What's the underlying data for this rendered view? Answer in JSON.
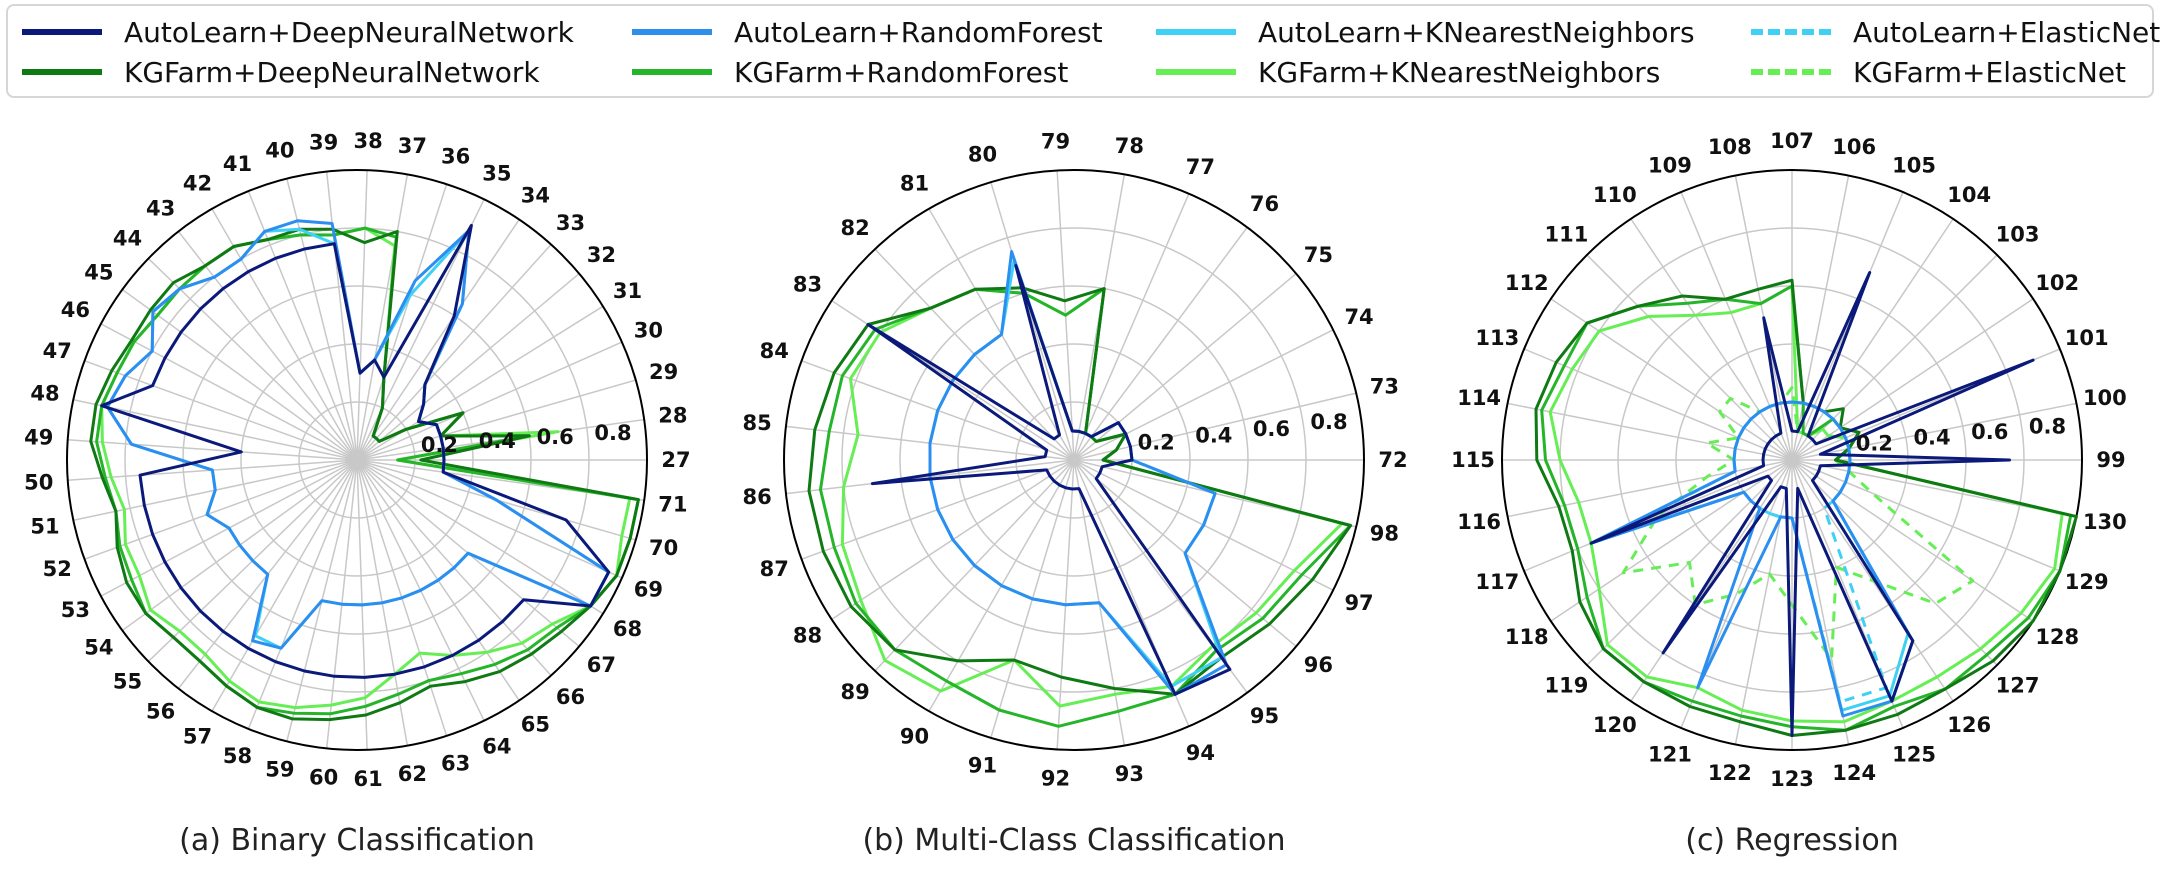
{
  "legend": [
    {
      "name": "AutoLearn+DeepNeuralNetwork",
      "color": "#0b1a7a",
      "dash": false
    },
    {
      "name": "AutoLearn+RandomForest",
      "color": "#2c8ff0",
      "dash": false
    },
    {
      "name": "AutoLearn+KNearestNeighbors",
      "color": "#3fd0f5",
      "dash": false
    },
    {
      "name": "AutoLearn+ElasticNet",
      "color": "#3fd0f5",
      "dash": true
    },
    {
      "name": "KGFarm+DeepNeuralNetwork",
      "color": "#0f7a14",
      "dash": false
    },
    {
      "name": "KGFarm+RandomForest",
      "color": "#26b52a",
      "dash": false
    },
    {
      "name": "KGFarm+KNearestNeighbors",
      "color": "#66ee55",
      "dash": false
    },
    {
      "name": "KGFarm+ElasticNet",
      "color": "#66ee55",
      "dash": true
    }
  ],
  "chart_data": [
    {
      "type": "radar",
      "caption": "(a) Binary Classification",
      "categories": [
        "27",
        "28",
        "29",
        "30",
        "31",
        "32",
        "33",
        "34",
        "35",
        "36",
        "37",
        "38",
        "39",
        "40",
        "41",
        "42",
        "43",
        "44",
        "45",
        "46",
        "47",
        "48",
        "49",
        "50",
        "51",
        "52",
        "53",
        "54",
        "55",
        "56",
        "57",
        "58",
        "59",
        "60",
        "61",
        "62",
        "63",
        "64",
        "65",
        "66",
        "67",
        "68",
        "69",
        "70",
        "71"
      ],
      "rlim": [
        0,
        1
      ],
      "rticks": [
        0.2,
        0.4,
        0.6,
        0.8
      ],
      "grid": true,
      "series": [
        {
          "name": "KGFarm+KNearestNeighbors",
          "values": [
            0.14,
            0.7,
            0.3,
            0.4,
            0.2,
            0.1,
            0.1,
            0.1,
            0.2,
            0.3,
            0.75,
            0.8,
            0.78,
            0.8,
            0.82,
            0.85,
            0.85,
            0.85,
            0.85,
            0.87,
            0.88,
            0.9,
            0.88,
            0.85,
            0.82,
            0.85,
            0.85,
            0.88,
            0.85,
            0.85,
            0.88,
            0.9,
            0.88,
            0.85,
            0.82,
            0.75,
            0.7,
            0.75,
            0.8,
            0.85,
            0.88,
            0.95,
            0.98,
            0.95,
            0.95
          ]
        },
        {
          "name": "KGFarm+RandomForest",
          "values": [
            0.14,
            0.6,
            0.3,
            0.4,
            0.2,
            0.1,
            0.1,
            0.1,
            0.2,
            0.3,
            0.78,
            0.8,
            0.78,
            0.8,
            0.82,
            0.85,
            0.85,
            0.85,
            0.85,
            0.87,
            0.88,
            0.9,
            0.9,
            0.87,
            0.85,
            0.87,
            0.88,
            0.9,
            0.88,
            0.88,
            0.9,
            0.92,
            0.9,
            0.88,
            0.85,
            0.82,
            0.8,
            0.82,
            0.85,
            0.88,
            0.9,
            0.95,
            0.98,
            0.98,
            0.98
          ]
        },
        {
          "name": "KGFarm+DeepNeuralNetwork",
          "values": [
            0.22,
            0.6,
            0.3,
            0.4,
            0.2,
            0.1,
            0.1,
            0.1,
            0.2,
            0.3,
            0.8,
            0.75,
            0.8,
            0.82,
            0.82,
            0.85,
            0.85,
            0.88,
            0.88,
            0.88,
            0.9,
            0.92,
            0.92,
            0.88,
            0.85,
            0.88,
            0.9,
            0.9,
            0.88,
            0.88,
            0.9,
            0.92,
            0.92,
            0.9,
            0.88,
            0.85,
            0.82,
            0.85,
            0.88,
            0.9,
            0.92,
            0.95,
            0.98,
            0.98,
            0.98
          ]
        },
        {
          "name": "AutoLearn+KNearestNeighbors",
          "values": [
            0.3,
            0.3,
            0.3,
            0.3,
            0.25,
            0.3,
            0.35,
            0.65,
            0.88,
            0.6,
            0.35,
            0.3,
            0.75,
            0.82,
            0.85,
            0.8,
            0.8,
            0.85,
            0.87,
            0.8,
            0.85,
            0.88,
            0.78,
            0.5,
            0.5,
            0.55,
            0.5,
            0.5,
            0.5,
            0.5,
            0.7,
            0.7,
            0.5,
            0.5,
            0.5,
            0.5,
            0.5,
            0.5,
            0.5,
            0.5,
            0.5,
            0.95,
            0.95,
            0.5,
            0.3
          ]
        },
        {
          "name": "AutoLearn+RandomForest",
          "values": [
            0.3,
            0.3,
            0.3,
            0.3,
            0.25,
            0.3,
            0.35,
            0.65,
            0.88,
            0.65,
            0.35,
            0.3,
            0.82,
            0.85,
            0.85,
            0.8,
            0.8,
            0.85,
            0.87,
            0.8,
            0.85,
            0.88,
            0.78,
            0.5,
            0.5,
            0.55,
            0.5,
            0.5,
            0.5,
            0.5,
            0.72,
            0.7,
            0.5,
            0.5,
            0.5,
            0.5,
            0.5,
            0.5,
            0.5,
            0.5,
            0.5,
            0.95,
            0.95,
            0.5,
            0.3
          ]
        },
        {
          "name": "AutoLearn+DeepNeuralNetwork",
          "values": [
            0.3,
            0.3,
            0.3,
            0.3,
            0.25,
            0.3,
            0.35,
            0.6,
            0.9,
            0.3,
            0.35,
            0.3,
            0.75,
            0.75,
            0.75,
            0.75,
            0.75,
            0.75,
            0.75,
            0.75,
            0.75,
            0.9,
            0.4,
            0.75,
            0.75,
            0.75,
            0.75,
            0.75,
            0.75,
            0.75,
            0.75,
            0.75,
            0.75,
            0.75,
            0.75,
            0.75,
            0.75,
            0.75,
            0.75,
            0.75,
            0.75,
            0.95,
            0.95,
            0.75,
            0.3
          ]
        }
      ]
    },
    {
      "type": "radar",
      "caption": "(b) Multi-Class Classification",
      "categories": [
        "72",
        "73",
        "74",
        "75",
        "76",
        "77",
        "78",
        "79",
        "80",
        "81",
        "82",
        "83",
        "84",
        "85",
        "86",
        "87",
        "88",
        "89",
        "90",
        "91",
        "92",
        "93",
        "94",
        "95",
        "96",
        "97",
        "98"
      ],
      "rlim": [
        0,
        1
      ],
      "rticks": [
        0.2,
        0.4,
        0.6,
        0.8
      ],
      "grid": true,
      "series": [
        {
          "name": "KGFarm+KNearestNeighbors",
          "values": [
            0.1,
            0.15,
            0.2,
            0.1,
            0.1,
            0.1,
            0.6,
            0.5,
            0.6,
            0.68,
            0.72,
            0.8,
            0.82,
            0.75,
            0.8,
            0.85,
            0.88,
            0.95,
            0.92,
            0.72,
            0.85,
            0.82,
            0.85,
            0.8,
            0.82,
            0.85,
            0.95
          ]
        },
        {
          "name": "KGFarm+RandomForest",
          "values": [
            0.1,
            0.15,
            0.2,
            0.1,
            0.1,
            0.1,
            0.6,
            0.5,
            0.6,
            0.68,
            0.72,
            0.82,
            0.85,
            0.85,
            0.88,
            0.88,
            0.9,
            0.9,
            0.88,
            0.9,
            0.92,
            0.88,
            0.88,
            0.82,
            0.85,
            0.88,
            0.98
          ]
        },
        {
          "name": "KGFarm+DeepNeuralNetwork",
          "values": [
            0.1,
            0.15,
            0.2,
            0.1,
            0.1,
            0.1,
            0.6,
            0.55,
            0.62,
            0.68,
            0.72,
            0.85,
            0.88,
            0.9,
            0.92,
            0.92,
            0.92,
            0.9,
            0.8,
            0.72,
            0.75,
            0.8,
            0.88,
            0.85,
            0.88,
            0.92,
            0.98
          ]
        },
        {
          "name": "AutoLearn+KNearestNeighbors",
          "values": [
            0.2,
            0.2,
            0.2,
            0.2,
            0.1,
            0.1,
            0.1,
            0.1,
            0.72,
            0.5,
            0.5,
            0.5,
            0.5,
            0.5,
            0.5,
            0.5,
            0.5,
            0.5,
            0.5,
            0.5,
            0.5,
            0.5,
            0.85,
            0.85,
            0.5,
            0.5,
            0.5
          ]
        },
        {
          "name": "AutoLearn+RandomForest",
          "values": [
            0.2,
            0.2,
            0.2,
            0.2,
            0.1,
            0.1,
            0.1,
            0.1,
            0.75,
            0.5,
            0.5,
            0.5,
            0.5,
            0.5,
            0.5,
            0.5,
            0.5,
            0.5,
            0.5,
            0.5,
            0.5,
            0.5,
            0.88,
            0.88,
            0.5,
            0.5,
            0.5
          ]
        },
        {
          "name": "AutoLearn+DeepNeuralNetwork",
          "values": [
            0.2,
            0.2,
            0.2,
            0.2,
            0.1,
            0.1,
            0.1,
            0.1,
            0.7,
            0.1,
            0.1,
            0.85,
            0.1,
            0.1,
            0.7,
            0.1,
            0.1,
            0.1,
            0.1,
            0.1,
            0.1,
            0.1,
            0.88,
            0.9,
            0.1,
            0.1,
            0.1
          ]
        }
      ]
    },
    {
      "type": "radar",
      "caption": "(c) Regression",
      "categories": [
        "99",
        "100",
        "101",
        "102",
        "103",
        "104",
        "105",
        "106",
        "107",
        "108",
        "109",
        "110",
        "111",
        "112",
        "113",
        "114",
        "115",
        "116",
        "117",
        "118",
        "119",
        "120",
        "121",
        "122",
        "123",
        "124",
        "125",
        "126",
        "127",
        "128",
        "129",
        "130"
      ],
      "rlim": [
        0,
        1
      ],
      "rticks": [
        0.2,
        0.4,
        0.6,
        0.8
      ],
      "grid": true,
      "series": [
        {
          "name": "KGFarm+ElasticNet",
          "values": [
            0.15,
            0.2,
            0.2,
            0.15,
            0.15,
            0.1,
            0.1,
            0.1,
            0.25,
            0.2,
            0.2,
            0.2,
            0.3,
            0.3,
            0.2,
            0.3,
            0.2,
            0.3,
            0.5,
            0.7,
            0.5,
            0.6,
            0.5,
            0.4,
            0.5,
            0.7,
            0.4,
            0.5,
            0.7,
            0.75,
            0.3,
            0.2
          ]
        },
        {
          "name": "KGFarm+KNearestNeighbors",
          "values": [
            0.15,
            0.2,
            0.2,
            0.15,
            0.15,
            0.1,
            0.1,
            0.1,
            0.6,
            0.55,
            0.55,
            0.6,
            0.7,
            0.8,
            0.82,
            0.85,
            0.8,
            0.75,
            0.75,
            0.8,
            0.9,
            0.9,
            0.85,
            0.88,
            0.9,
            0.92,
            0.9,
            0.9,
            0.92,
            0.95,
            0.98,
            0.95
          ]
        },
        {
          "name": "KGFarm+RandomForest",
          "values": [
            0.15,
            0.2,
            0.25,
            0.2,
            0.2,
            0.1,
            0.1,
            0.2,
            0.6,
            0.55,
            0.6,
            0.65,
            0.75,
            0.85,
            0.85,
            0.88,
            0.85,
            0.8,
            0.8,
            0.85,
            0.92,
            0.92,
            0.9,
            0.9,
            0.92,
            0.95,
            0.92,
            0.95,
            0.95,
            0.98,
            1.0,
            0.98
          ]
        },
        {
          "name": "KGFarm+DeepNeuralNetwork",
          "values": [
            0.15,
            0.2,
            0.25,
            0.2,
            0.25,
            0.2,
            0.2,
            0.2,
            0.62,
            0.6,
            0.6,
            0.68,
            0.75,
            0.85,
            0.88,
            0.9,
            0.88,
            0.82,
            0.82,
            0.88,
            0.92,
            0.92,
            0.92,
            0.92,
            0.95,
            0.95,
            0.95,
            0.95,
            0.98,
            1.0,
            1.0,
            1.0
          ]
        },
        {
          "name": "AutoLearn+ElasticNet",
          "values": [
            0.2,
            0.2,
            0.2,
            0.2,
            0.2,
            0.2,
            0.2,
            0.2,
            0.2,
            0.2,
            0.2,
            0.2,
            0.2,
            0.2,
            0.2,
            0.2,
            0.2,
            0.2,
            0.7,
            0.2,
            0.2,
            0.2,
            0.2,
            0.2,
            0.2,
            0.85,
            0.85,
            0.2,
            0.2,
            0.2,
            0.2,
            0.2
          ]
        },
        {
          "name": "AutoLearn+KNearestNeighbors",
          "values": [
            0.2,
            0.2,
            0.2,
            0.2,
            0.2,
            0.2,
            0.2,
            0.2,
            0.2,
            0.2,
            0.2,
            0.2,
            0.2,
            0.2,
            0.2,
            0.2,
            0.2,
            0.2,
            0.75,
            0.2,
            0.2,
            0.2,
            0.2,
            0.2,
            0.2,
            0.88,
            0.88,
            0.72,
            0.2,
            0.2,
            0.2,
            0.2
          ]
        },
        {
          "name": "AutoLearn+RandomForest",
          "values": [
            0.2,
            0.2,
            0.2,
            0.2,
            0.2,
            0.2,
            0.2,
            0.2,
            0.2,
            0.2,
            0.2,
            0.2,
            0.2,
            0.2,
            0.2,
            0.2,
            0.2,
            0.2,
            0.75,
            0.2,
            0.2,
            0.2,
            0.85,
            0.2,
            0.2,
            0.9,
            0.9,
            0.75,
            0.2,
            0.2,
            0.2,
            0.2
          ]
        },
        {
          "name": "AutoLearn+DeepNeuralNetwork",
          "values": [
            0.75,
            0.1,
            0.9,
            0.1,
            0.1,
            0.1,
            0.7,
            0.1,
            0.1,
            0.5,
            0.1,
            0.1,
            0.1,
            0.1,
            0.1,
            0.1,
            0.1,
            0.1,
            0.75,
            0.1,
            0.1,
            0.8,
            0.1,
            0.1,
            0.95,
            0.1,
            0.9,
            0.75,
            0.1,
            0.1,
            0.1,
            0.1
          ]
        }
      ]
    }
  ]
}
